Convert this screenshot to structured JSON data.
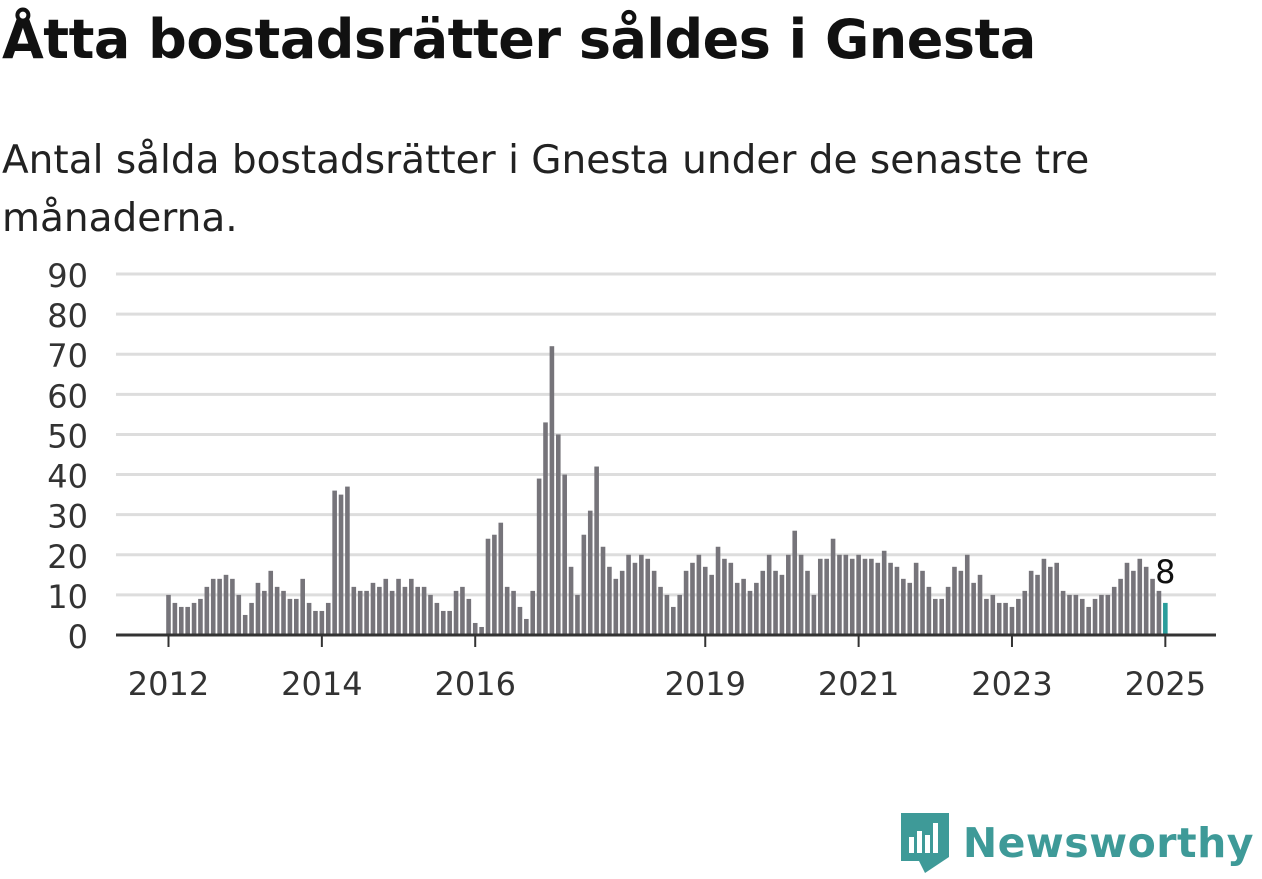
{
  "title": "Åtta bostadsrätter såldes i Gnesta",
  "subtitle": "Antal sålda bostadsrätter i Gnesta under de senaste tre månaderna.",
  "brand": "Newsworthy",
  "colors": {
    "bar": "#76747a",
    "highlight": "#2a9d9b",
    "grid": "#dddddd",
    "axis": "#333333",
    "text": "#333333",
    "brand": "#3e9a98"
  },
  "chart_data": {
    "type": "bar",
    "title": "Åtta bostadsrätter såldes i Gnesta",
    "subtitle": "Antal sålda bostadsrätter i Gnesta under de senaste tre månaderna.",
    "xlabel": "",
    "ylabel": "",
    "ylim": [
      0,
      90
    ],
    "yticks": [
      0,
      10,
      20,
      30,
      40,
      50,
      60,
      70,
      80,
      90
    ],
    "grid": true,
    "x_tick_labels": [
      {
        "label": "2012",
        "month": 0
      },
      {
        "label": "2014",
        "month": 24
      },
      {
        "label": "2016",
        "month": 48
      },
      {
        "label": "2019",
        "month": 84
      },
      {
        "label": "2021",
        "month": 108
      },
      {
        "label": "2023",
        "month": 132
      },
      {
        "label": "2025",
        "month": 156
      }
    ],
    "first_month": "2012-01",
    "values": [
      10,
      8,
      7,
      7,
      8,
      9,
      12,
      14,
      14,
      15,
      14,
      10,
      5,
      8,
      13,
      11,
      16,
      12,
      11,
      9,
      9,
      14,
      8,
      6,
      6,
      8,
      36,
      35,
      37,
      12,
      11,
      11,
      13,
      12,
      14,
      11,
      14,
      12,
      14,
      12,
      12,
      10,
      8,
      6,
      6,
      11,
      12,
      9,
      3,
      2,
      24,
      25,
      28,
      12,
      11,
      7,
      4,
      11,
      39,
      53,
      72,
      50,
      40,
      17,
      10,
      25,
      31,
      42,
      22,
      17,
      14,
      16,
      20,
      18,
      20,
      19,
      16,
      12,
      10,
      7,
      10,
      16,
      18,
      20,
      17,
      15,
      22,
      19,
      18,
      13,
      14,
      11,
      13,
      16,
      20,
      16,
      15,
      20,
      26,
      20,
      16,
      10,
      19,
      19,
      24,
      20,
      20,
      19,
      20,
      19,
      19,
      18,
      21,
      18,
      17,
      14,
      13,
      18,
      16,
      12,
      9,
      9,
      12,
      17,
      16,
      20,
      13,
      15,
      9,
      10,
      8,
      8,
      7,
      9,
      11,
      16,
      15,
      19,
      17,
      18,
      11,
      10,
      10,
      9,
      7,
      9,
      10,
      10,
      12,
      14,
      18,
      16,
      19,
      17,
      14,
      11,
      8
    ],
    "highlight_last": true,
    "annotation": {
      "label": "8",
      "month": 156,
      "value": 8
    }
  }
}
